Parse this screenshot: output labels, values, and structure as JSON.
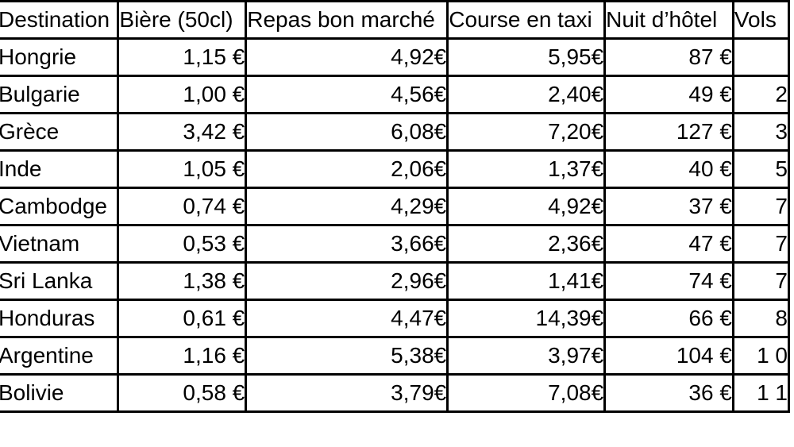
{
  "colors": {
    "border": "#000000",
    "background": "#ffffff",
    "text": "#000000"
  },
  "table": {
    "columns": [
      {
        "id": "destination",
        "label": "Destination",
        "align": "left"
      },
      {
        "id": "biere",
        "label": "Bière (50cl)",
        "align": "right"
      },
      {
        "id": "repas",
        "label": "Repas bon marché",
        "align": "right"
      },
      {
        "id": "taxi",
        "label": "Course en taxi",
        "align": "right"
      },
      {
        "id": "nuit",
        "label": "Nuit d’hôtel",
        "align": "right"
      },
      {
        "id": "vols",
        "label": "Vols",
        "align": "right"
      }
    ],
    "rows": [
      [
        "Hongrie",
        "1,15 €",
        "4,92€",
        "5,95€",
        "87 €",
        ""
      ],
      [
        "Bulgarie",
        "1,00 €",
        "4,56€",
        "2,40€",
        "49 €",
        "2"
      ],
      [
        "Grèce",
        "3,42 €",
        "6,08€",
        "7,20€",
        "127 €",
        "3"
      ],
      [
        "Inde",
        "1,05 €",
        "2,06€",
        "1,37€",
        "40 €",
        "5"
      ],
      [
        "Cambodge",
        "0,74 €",
        "4,29€",
        "4,92€",
        "37 €",
        "7"
      ],
      [
        "Vietnam",
        "0,53 €",
        "3,66€",
        "2,36€",
        "47 €",
        "7"
      ],
      [
        "Sri Lanka",
        "1,38 €",
        "2,96€",
        "1,41€",
        "74 €",
        "7"
      ],
      [
        "Honduras",
        "0,61 €",
        "4,47€",
        "14,39€",
        "66 €",
        "8"
      ],
      [
        "Argentine",
        "1,16 €",
        "5,38€",
        "3,97€",
        "104 €",
        "1 0"
      ],
      [
        "Bolivie",
        "0,58 €",
        "3,79€",
        "7,08€",
        "36 €",
        "1 1"
      ]
    ]
  },
  "chart_data": {
    "type": "table",
    "title": "",
    "columns": [
      "Destination",
      "Bière (50cl)",
      "Repas bon marché",
      "Course en taxi",
      "Nuit d’hôtel",
      "Vols"
    ],
    "rows": [
      [
        "Hongrie",
        "1,15 €",
        "4,92€",
        "5,95€",
        "87 €",
        ""
      ],
      [
        "Bulgarie",
        "1,00 €",
        "4,56€",
        "2,40€",
        "49 €",
        "2"
      ],
      [
        "Grèce",
        "3,42 €",
        "6,08€",
        "7,20€",
        "127 €",
        "3"
      ],
      [
        "Inde",
        "1,05 €",
        "2,06€",
        "1,37€",
        "40 €",
        "5"
      ],
      [
        "Cambodge",
        "0,74 €",
        "4,29€",
        "4,92€",
        "37 €",
        "7"
      ],
      [
        "Vietnam",
        "0,53 €",
        "3,66€",
        "2,36€",
        "47 €",
        "7"
      ],
      [
        "Sri Lanka",
        "1,38 €",
        "2,96€",
        "1,41€",
        "74 €",
        "7"
      ],
      [
        "Honduras",
        "0,61 €",
        "4,47€",
        "14,39€",
        "66 €",
        "8"
      ],
      [
        "Argentine",
        "1,16 €",
        "5,38€",
        "3,97€",
        "104 €",
        "1 0"
      ],
      [
        "Bolivie",
        "0,58 €",
        "3,79€",
        "7,08€",
        "36 €",
        "1 1"
      ]
    ]
  }
}
